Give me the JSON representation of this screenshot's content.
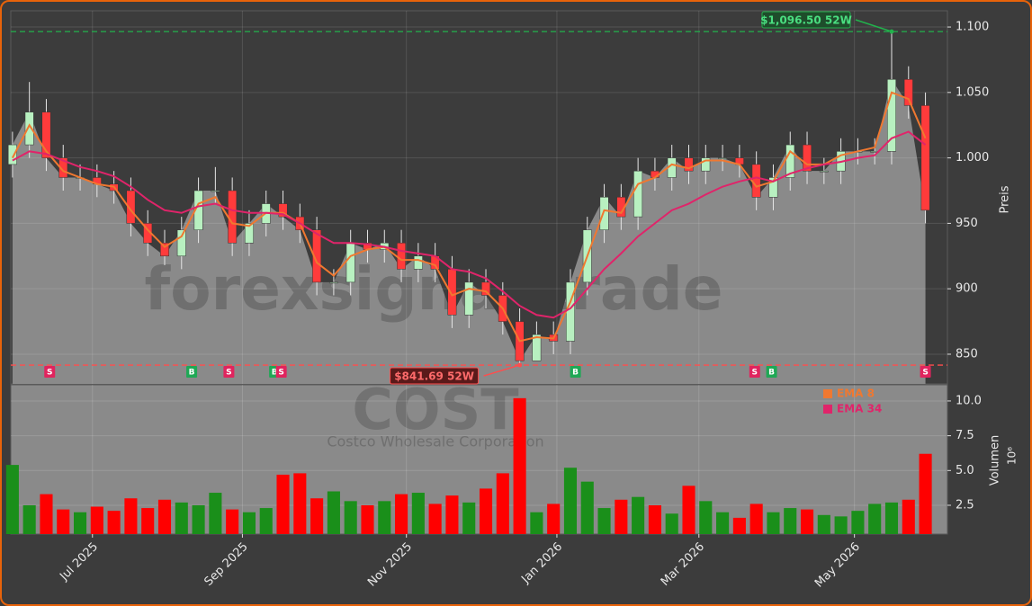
{
  "chart_data": [
    {
      "type": "candlestick",
      "watermark": "forexsignal.trade",
      "ylabel": "Preis",
      "x": [
        0,
        1,
        2,
        3,
        4,
        5,
        6,
        7,
        8,
        9,
        10,
        11,
        12,
        13,
        14,
        15,
        16,
        17,
        18,
        19,
        20,
        21,
        22,
        23,
        24,
        25,
        26,
        27,
        28,
        29,
        30,
        31,
        32,
        33,
        34,
        35,
        36,
        37,
        38,
        39,
        40,
        41,
        42,
        43,
        44,
        45,
        46,
        47,
        48,
        49,
        50,
        51,
        52,
        53,
        54
      ],
      "open": [
        995,
        1010,
        1035,
        1000,
        985,
        985,
        980,
        975,
        950,
        935,
        925,
        945,
        975,
        975,
        935,
        950,
        965,
        955,
        945,
        905,
        905,
        935,
        930,
        935,
        915,
        925,
        915,
        880,
        905,
        895,
        875,
        845,
        865,
        860,
        905,
        945,
        970,
        955,
        990,
        985,
        1000,
        990,
        1000,
        1000,
        995,
        970,
        985,
        1010,
        990,
        990,
        1005,
        1005,
        1005,
        1060,
        1040
      ],
      "high": [
        1020,
        1058,
        1045,
        1010,
        995,
        995,
        990,
        985,
        960,
        945,
        955,
        985,
        993,
        985,
        960,
        975,
        975,
        965,
        955,
        915,
        945,
        945,
        945,
        945,
        935,
        935,
        925,
        915,
        915,
        905,
        885,
        875,
        875,
        915,
        955,
        980,
        980,
        1000,
        1000,
        1010,
        1010,
        1010,
        1010,
        1010,
        1005,
        995,
        1020,
        1020,
        1000,
        1015,
        1015,
        1015,
        1096.5,
        1070,
        1050
      ],
      "low": [
        985,
        1000,
        990,
        975,
        975,
        970,
        965,
        940,
        925,
        918,
        915,
        935,
        965,
        925,
        925,
        940,
        945,
        935,
        895,
        895,
        895,
        920,
        920,
        905,
        905,
        905,
        870,
        870,
        885,
        865,
        841.69,
        845,
        850,
        850,
        895,
        935,
        945,
        945,
        975,
        975,
        980,
        980,
        990,
        985,
        960,
        960,
        975,
        980,
        980,
        980,
        995,
        995,
        995,
        1030,
        950
      ],
      "close": [
        1010,
        1035,
        1000,
        985,
        985,
        980,
        975,
        950,
        935,
        925,
        945,
        975,
        975,
        935,
        950,
        965,
        955,
        945,
        905,
        905,
        935,
        930,
        935,
        915,
        925,
        915,
        880,
        905,
        895,
        875,
        845,
        865,
        860,
        905,
        945,
        970,
        955,
        990,
        985,
        1000,
        990,
        1000,
        1000,
        995,
        970,
        985,
        1010,
        990,
        990,
        1005,
        1005,
        1005,
        1060,
        1040,
        960
      ],
      "up_color": "#b8f0c0",
      "down_color": "#ff3b3b",
      "area_color": "#8a8a8a",
      "series": [
        {
          "name": "EMA 8",
          "color": "#f07830",
          "values": [
            1000,
            1025,
            1005,
            990,
            985,
            980,
            978,
            960,
            945,
            932,
            940,
            965,
            970,
            950,
            948,
            958,
            958,
            950,
            920,
            910,
            925,
            930,
            932,
            922,
            922,
            918,
            895,
            900,
            898,
            885,
            860,
            863,
            862,
            890,
            925,
            960,
            958,
            980,
            985,
            995,
            992,
            998,
            998,
            995,
            978,
            982,
            1005,
            995,
            995,
            1002,
            1005,
            1008,
            1050,
            1045,
            1015
          ]
        },
        {
          "name": "EMA 34",
          "color": "#e0246a",
          "values": [
            998,
            1005,
            1003,
            998,
            993,
            990,
            986,
            978,
            968,
            960,
            958,
            963,
            965,
            960,
            958,
            958,
            957,
            950,
            942,
            935,
            935,
            934,
            932,
            929,
            927,
            925,
            915,
            913,
            908,
            898,
            887,
            880,
            878,
            885,
            900,
            915,
            927,
            940,
            950,
            960,
            965,
            972,
            978,
            982,
            985,
            982,
            988,
            992,
            995,
            997,
            1000,
            1002,
            1015,
            1020,
            1010
          ]
        }
      ],
      "legend": "upper right",
      "annotations": [
        {
          "label": "$1,096.50 52W",
          "value": 1096.5,
          "x": 52,
          "color": "#22b14c"
        },
        {
          "label": "$841.69 52W",
          "value": 841.69,
          "x": 30,
          "color": "#ff4d4d"
        }
      ],
      "signals": [
        {
          "x": 2.2,
          "label": "S"
        },
        {
          "x": 10.6,
          "label": "B"
        },
        {
          "x": 12.8,
          "label": "S"
        },
        {
          "x": 15.5,
          "label": "B"
        },
        {
          "x": 15.9,
          "label": "S"
        },
        {
          "x": 33.3,
          "label": "B"
        },
        {
          "x": 43.9,
          "label": "S"
        },
        {
          "x": 44.9,
          "label": "B"
        },
        {
          "x": 54,
          "label": "S"
        }
      ],
      "signal_colors": {
        "S": "#e0245e",
        "B": "#1fa855"
      },
      "xlim": [
        -0.1,
        55.3
      ],
      "xticks": [
        {
          "value": 4.73,
          "label": "Jul 2025"
        },
        {
          "value": 13.6,
          "label": "Sep 2025"
        },
        {
          "value": 23.3,
          "label": "Nov 2025"
        },
        {
          "value": 32.2,
          "label": "Jan 2026"
        },
        {
          "value": 40.6,
          "label": "Mar 2026"
        },
        {
          "value": 49.8,
          "label": "May 2026"
        }
      ],
      "ylim": [
        827.3,
        1112.4
      ],
      "yticks": [
        850,
        900,
        950,
        {
          "value": 1000,
          "label": "1.000"
        },
        {
          "value": 1050,
          "label": "1.050"
        },
        {
          "value": 1100,
          "label": "1.100"
        }
      ],
      "grid": true
    },
    {
      "type": "bar",
      "title": "COST",
      "subtitle": "Costco Wholesale Corporation",
      "ylabel": "Volumen",
      "yscale_label": "10⁶",
      "values": [
        5.4,
        2.5,
        3.3,
        2.2,
        2.0,
        2.4,
        2.1,
        3.0,
        2.3,
        2.9,
        2.7,
        2.5,
        3.4,
        2.2,
        2.0,
        2.3,
        4.7,
        4.8,
        3.0,
        3.5,
        2.8,
        2.5,
        2.8,
        3.3,
        3.4,
        2.6,
        3.2,
        2.7,
        3.7,
        4.8,
        10.2,
        2.0,
        2.6,
        5.2,
        4.2,
        2.3,
        2.9,
        3.1,
        2.5,
        1.9,
        3.9,
        2.8,
        2.0,
        1.6,
        2.6,
        2.0,
        2.3,
        2.2,
        1.8,
        1.7,
        2.1,
        2.6,
        2.7,
        2.9,
        6.2
      ],
      "up_color": "#1a8f1a",
      "down_color": "#ff0000",
      "ylim": [
        0.43,
        11.16
      ],
      "yticks": [
        2.5,
        {
          "value": 5,
          "label": "5.0"
        },
        7.5,
        {
          "value": 10,
          "label": "10.0"
        }
      ],
      "grid": true
    }
  ]
}
